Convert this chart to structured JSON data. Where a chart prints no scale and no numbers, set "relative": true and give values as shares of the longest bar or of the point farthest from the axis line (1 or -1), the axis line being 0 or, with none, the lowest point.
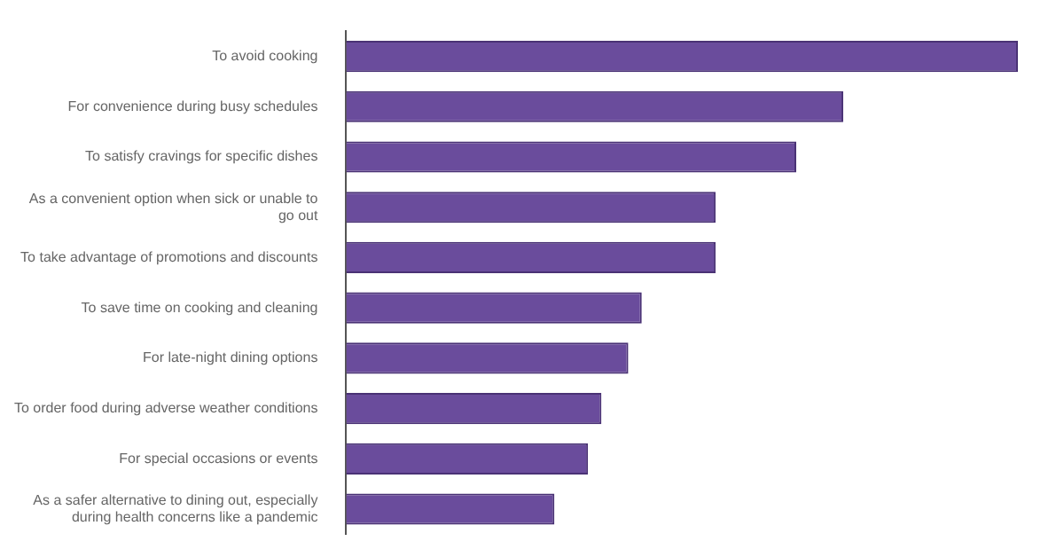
{
  "chart_data": {
    "type": "bar",
    "orientation": "horizontal",
    "relative": true,
    "legend": false,
    "categories": [
      "To avoid cooking",
      "For convenience during busy schedules",
      "To satisfy cravings for specific dishes",
      "As a convenient option when sick or unable to go out",
      "To take advantage of promotions and discounts",
      "To save time on cooking and cleaning",
      "For late-night dining options",
      "To order food during adverse weather conditions",
      "For special occasions or events",
      "As a safer alternative to dining out, especially during health concerns like a pandemic"
    ],
    "values": [
      1,
      0.74,
      0.67,
      0.55,
      0.55,
      0.44,
      0.42,
      0.38,
      0.36,
      0.31
    ],
    "color": "#6a4c9c"
  }
}
